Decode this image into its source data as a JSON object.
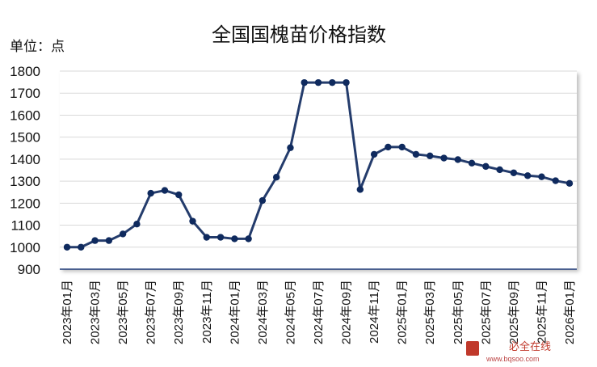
{
  "chart_data": {
    "type": "line",
    "title": "全国国槐苗价格指数",
    "ylabel": "单位：点",
    "xlabel": "",
    "ylim": [
      900,
      1800
    ],
    "yticks": [
      900,
      1000,
      1100,
      1200,
      1300,
      1400,
      1500,
      1600,
      1700,
      1800
    ],
    "grid": true,
    "legend": "none",
    "x": [
      "2023年01月",
      "2023年02月",
      "2023年03月",
      "2023年04月",
      "2023年05月",
      "2023年06月",
      "2023年07月",
      "2023年08月",
      "2023年09月",
      "2023年10月",
      "2023年11月",
      "2023年12月",
      "2024年01月",
      "2024年02月",
      "2024年03月",
      "2024年04月",
      "2024年05月",
      "2024年06月",
      "2024年07月",
      "2024年08月",
      "2024年09月",
      "2024年10月",
      "2024年11月",
      "2024年12月",
      "2025年01月",
      "2025年02月",
      "2025年03月",
      "2025年04月",
      "2025年05月",
      "2025年06月",
      "2025年07月",
      "2025年08月",
      "2025年09月",
      "2025年10月",
      "2025年11月",
      "2025年12月",
      "2026年01月"
    ],
    "xtick_labels": [
      "2023年01月",
      "2023年03月",
      "2023年05月",
      "2023年07月",
      "2023年09月",
      "2023年11月",
      "2024年01月",
      "2024年03月",
      "2024年05月",
      "2024年07月",
      "2024年09月",
      "2024年11月",
      "2025年01月",
      "2025年03月",
      "2025年05月",
      "2025年07月",
      "2025年09月",
      "2025年11月",
      "2026年01月"
    ],
    "series": [
      {
        "values": [
          1000,
          1000,
          1030,
          1030,
          1060,
          1105,
          1245,
          1258,
          1238,
          1118,
          1045,
          1045,
          1038,
          1038,
          1212,
          1318,
          1452,
          1748,
          1748,
          1748,
          1748,
          1262,
          1422,
          1455,
          1455,
          1422,
          1415,
          1405,
          1398,
          1382,
          1367,
          1352,
          1338,
          1325,
          1320,
          1302,
          1290
        ]
      }
    ],
    "colors": {
      "line": "#243c6c",
      "marker": "#0f2a5e"
    }
  },
  "watermark": {
    "text": "必全在线",
    "url": "www.bqsoo.com"
  }
}
